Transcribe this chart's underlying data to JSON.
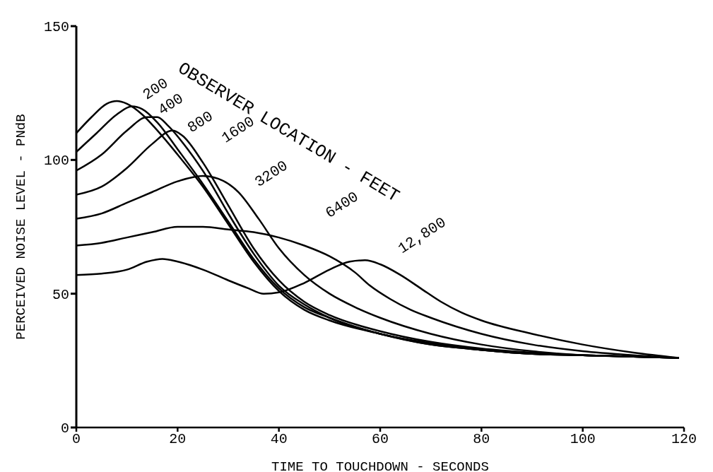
{
  "chart_data": {
    "type": "line",
    "xlabel": "TIME TO TOUCHDOWN - SECONDS",
    "ylabel": "PERCEIVED NOISE LEVEL - PNdB",
    "annotations": [
      "OBSERVER LOCATION - FEET"
    ],
    "xlim": [
      0,
      120
    ],
    "xticks": [
      0,
      20,
      40,
      60,
      80,
      100,
      120
    ],
    "ylim": [
      0,
      150
    ],
    "yticks": [
      0,
      50,
      100,
      150
    ],
    "grid": false,
    "legend": false,
    "marker": "none",
    "line_style": "solid",
    "series": [
      {
        "name": "200",
        "color": "#000000",
        "x": [
          0,
          3,
          6,
          8,
          10,
          13,
          16,
          20,
          25,
          30,
          35,
          40,
          45,
          50,
          60,
          70,
          80,
          90,
          100,
          110,
          119
        ],
        "values": [
          110,
          116,
          121,
          122,
          121,
          117,
          111,
          102,
          90,
          76,
          62,
          51,
          44,
          40,
          35,
          31,
          29,
          27.5,
          27,
          26.5,
          26
        ]
      },
      {
        "name": "400",
        "color": "#000000",
        "x": [
          0,
          4,
          8,
          11,
          13,
          16,
          20,
          25,
          30,
          35,
          40,
          45,
          50,
          60,
          70,
          80,
          90,
          100,
          110,
          119
        ],
        "values": [
          103,
          110,
          117,
          120,
          119,
          114,
          104,
          91,
          77,
          63,
          52,
          45,
          41,
          35,
          31,
          29,
          27.5,
          27,
          26.5,
          26
        ]
      },
      {
        "name": "800",
        "color": "#000000",
        "x": [
          0,
          5,
          10,
          14,
          16,
          18,
          22,
          26,
          30,
          35,
          40,
          45,
          50,
          60,
          70,
          80,
          90,
          100,
          110,
          119
        ],
        "values": [
          96,
          102,
          111,
          116,
          116,
          113,
          104,
          93,
          80,
          65,
          53,
          46,
          41,
          35,
          31.5,
          29,
          27.5,
          27,
          26.5,
          26
        ]
      },
      {
        "name": "1600",
        "color": "#000000",
        "x": [
          0,
          5,
          10,
          15,
          19,
          21,
          25,
          30,
          35,
          40,
          45,
          50,
          60,
          70,
          80,
          90,
          100,
          110,
          119
        ],
        "values": [
          87,
          90,
          97,
          106,
          111,
          109,
          99,
          83,
          67,
          55,
          47,
          42,
          36,
          32,
          29.5,
          28,
          27,
          26.5,
          26
        ]
      },
      {
        "name": "3200",
        "color": "#000000",
        "x": [
          0,
          5,
          10,
          15,
          20,
          25,
          28,
          32,
          36,
          40,
          45,
          50,
          55,
          60,
          70,
          80,
          90,
          100,
          110,
          119
        ],
        "values": [
          78,
          80,
          84,
          88,
          92,
          94,
          93,
          88,
          78,
          67,
          57,
          50,
          45,
          41,
          35,
          31,
          28.5,
          27,
          26.5,
          26
        ]
      },
      {
        "name": "6400",
        "color": "#000000",
        "x": [
          0,
          5,
          10,
          15,
          20,
          25,
          30,
          35,
          40,
          45,
          50,
          55,
          58,
          62,
          66,
          70,
          80,
          90,
          100,
          110,
          119
        ],
        "values": [
          68,
          69,
          71,
          73,
          75,
          75,
          74,
          73,
          71,
          68,
          64,
          58,
          53,
          48,
          44,
          41,
          35,
          31,
          28.5,
          27,
          26
        ]
      },
      {
        "name": "12,800",
        "color": "#000000",
        "x": [
          0,
          5,
          10,
          14,
          17,
          20,
          25,
          30,
          34,
          37,
          40,
          45,
          50,
          54,
          57,
          60,
          64,
          68,
          72,
          76,
          80,
          90,
          100,
          110,
          119
        ],
        "values": [
          57,
          57.5,
          59,
          62,
          63,
          62,
          59,
          55,
          52,
          50,
          50.5,
          54,
          59,
          62,
          62.5,
          61,
          57,
          52,
          47,
          43,
          40,
          35,
          31,
          28,
          26
        ]
      }
    ]
  }
}
